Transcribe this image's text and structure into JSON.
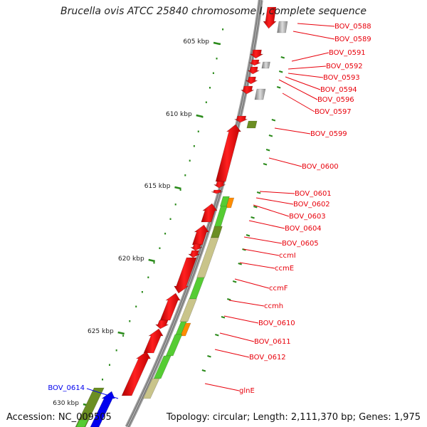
{
  "title": "Brucella ovis ATCC 25840 chromosome I, complete sequence",
  "footer": {
    "accession": "Accession: NC_009505",
    "topology": "Topology: circular; Length: 2,111,370 bp; Genes: 1,975"
  },
  "ruler": {
    "tick_labels": [
      "605 kbp",
      "610 kbp",
      "615 kbp",
      "620 kbp",
      "625 kbp",
      "630 kbp"
    ]
  },
  "gene_labels": [
    {
      "text": "BOV_0588",
      "color": "#e8000b"
    },
    {
      "text": "BOV_0589",
      "color": "#e8000b"
    },
    {
      "text": "BOV_0591",
      "color": "#e8000b"
    },
    {
      "text": "BOV_0592",
      "color": "#e8000b"
    },
    {
      "text": "BOV_0593",
      "color": "#e8000b"
    },
    {
      "text": "BOV_0594",
      "color": "#e8000b"
    },
    {
      "text": "BOV_0596",
      "color": "#e8000b"
    },
    {
      "text": "BOV_0597",
      "color": "#e8000b"
    },
    {
      "text": "BOV_0599",
      "color": "#e8000b"
    },
    {
      "text": "BOV_0600",
      "color": "#e8000b"
    },
    {
      "text": "BOV_0601",
      "color": "#e8000b"
    },
    {
      "text": "BOV_0602",
      "color": "#e8000b"
    },
    {
      "text": "BOV_0603",
      "color": "#e8000b"
    },
    {
      "text": "BOV_0604",
      "color": "#e8000b"
    },
    {
      "text": "BOV_0605",
      "color": "#e8000b"
    },
    {
      "text": "ccmI",
      "color": "#e8000b"
    },
    {
      "text": "ccmE",
      "color": "#e8000b"
    },
    {
      "text": "ccmF",
      "color": "#e8000b"
    },
    {
      "text": "ccmh",
      "color": "#e8000b"
    },
    {
      "text": "BOV_0610",
      "color": "#e8000b"
    },
    {
      "text": "BOV_0611",
      "color": "#e8000b"
    },
    {
      "text": "BOV_0612",
      "color": "#e8000b"
    },
    {
      "text": "glnE",
      "color": "#e8000b"
    },
    {
      "text": "BOV_0614",
      "color": "#0000ee"
    }
  ],
  "colors": {
    "cds_red": "#f00000",
    "cds_grey": "#999999",
    "cds_blue": "#0000ee",
    "gc_green": "#55cc33",
    "olive": "#6b8e23",
    "khaki": "#c9c48a",
    "orange": "#ff8c00",
    "ruler_green": "#2a8a1a",
    "backbone": "#666666"
  }
}
